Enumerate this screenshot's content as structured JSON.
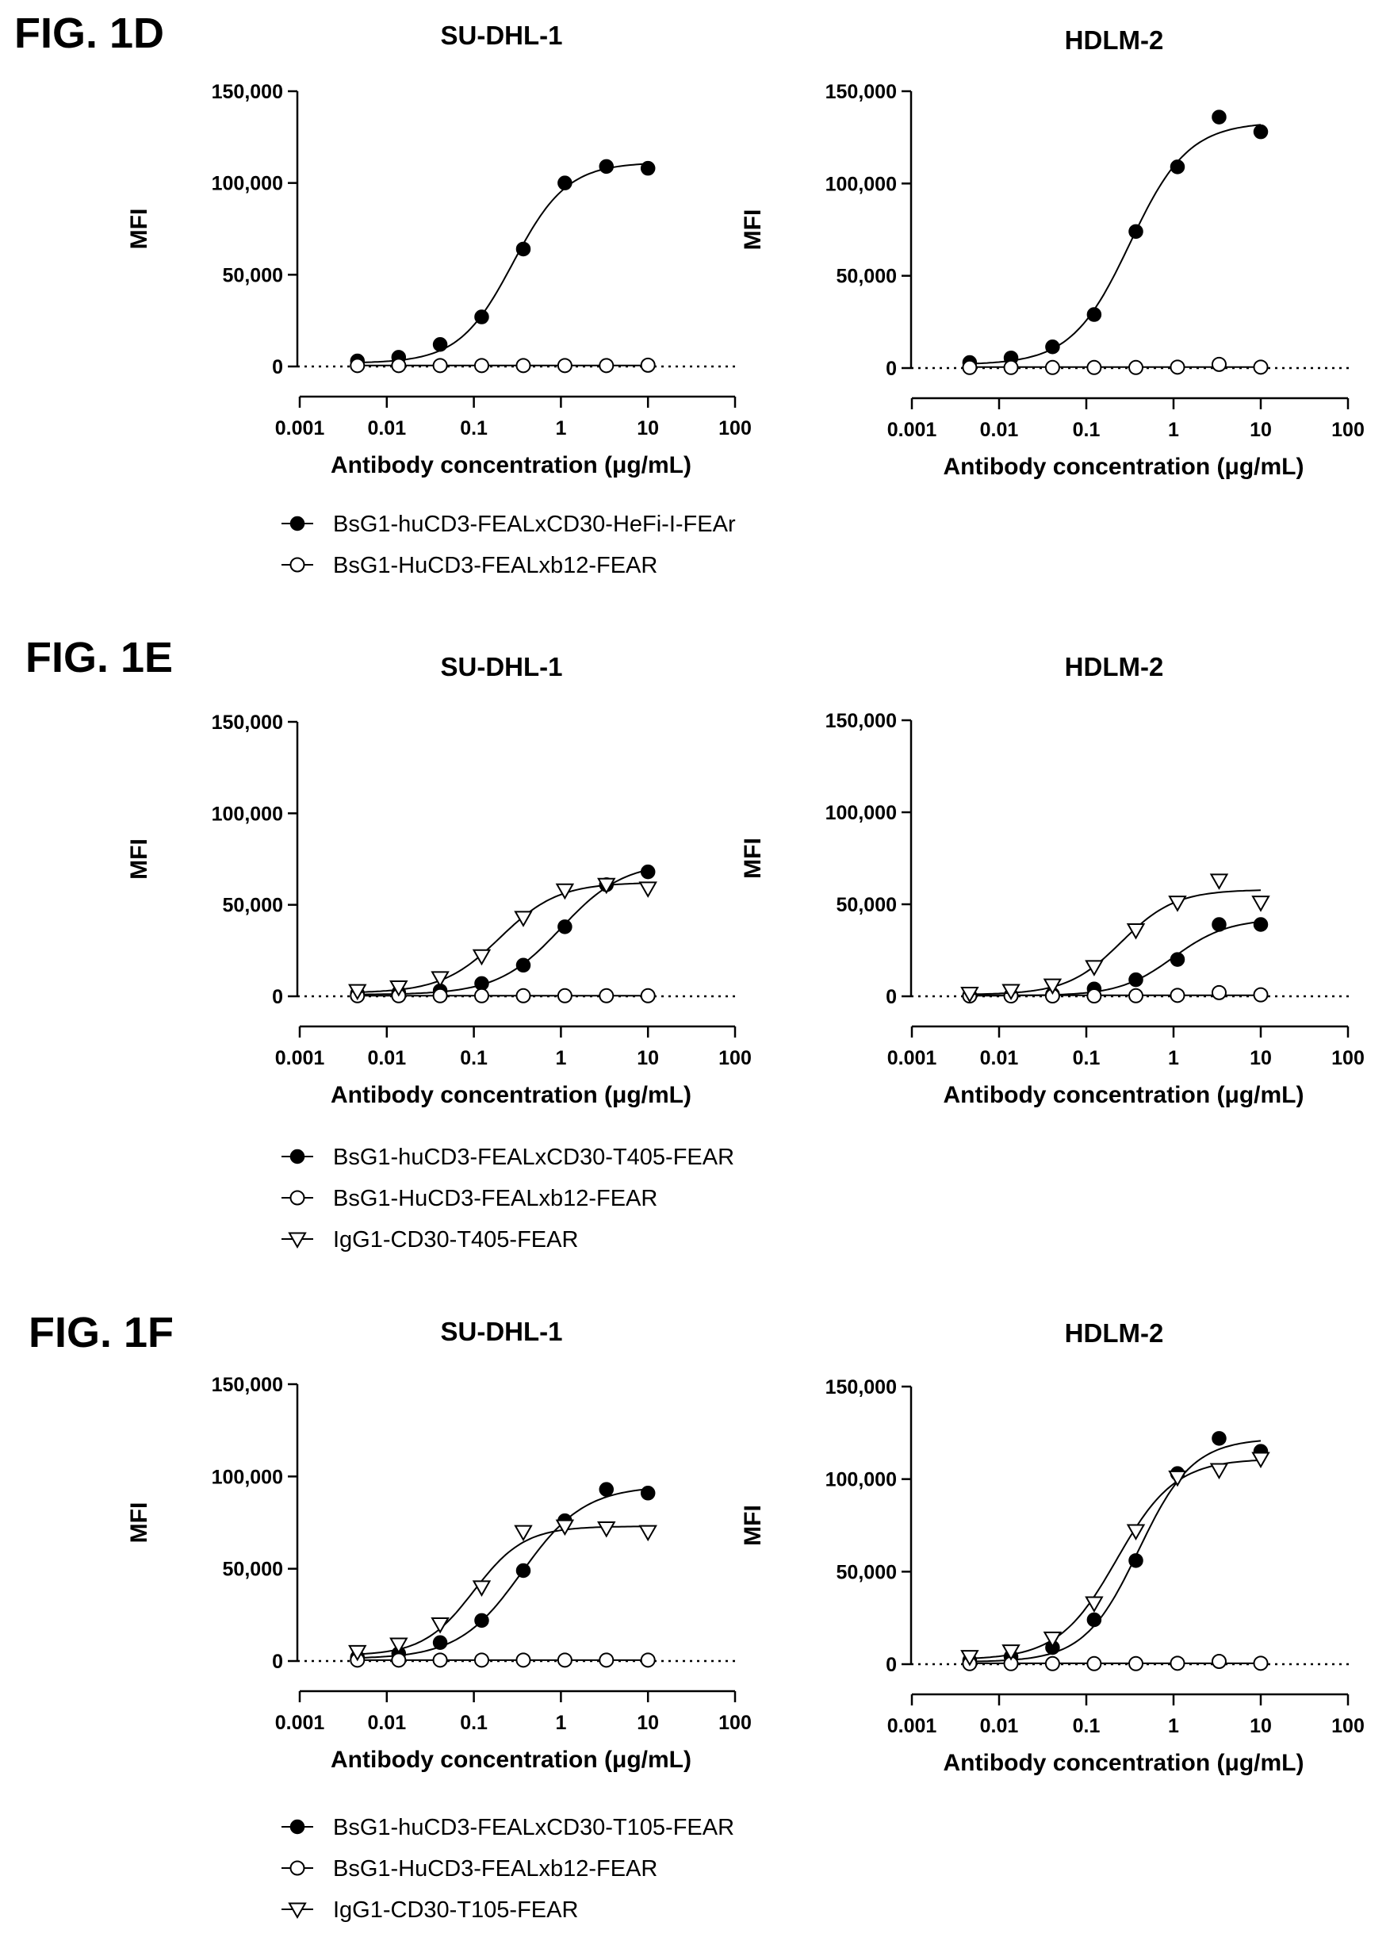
{
  "figures": [
    {
      "label": "FIG. 1D",
      "legend": [
        {
          "marker": "filled-circle",
          "label": "BsG1-huCD3-FEALxCD30-HeFi-I-FEAr"
        },
        {
          "marker": "open-circle",
          "label": "BsG1-HuCD3-FEALxb12-FEAR"
        }
      ]
    },
    {
      "label": "FIG. 1E",
      "legend": [
        {
          "marker": "filled-circle",
          "label": "BsG1-huCD3-FEALxCD30-T405-FEAR"
        },
        {
          "marker": "open-circle",
          "label": "BsG1-HuCD3-FEALxb12-FEAR"
        },
        {
          "marker": "open-triangle",
          "label": "IgG1-CD30-T405-FEAR"
        }
      ]
    },
    {
      "label": "FIG. 1F",
      "legend": [
        {
          "marker": "filled-circle",
          "label": "BsG1-huCD3-FEALxCD30-T105-FEAR"
        },
        {
          "marker": "open-circle",
          "label": "BsG1-HuCD3-FEALxb12-FEAR"
        },
        {
          "marker": "open-triangle",
          "label": "IgG1-CD30-T105-FEAR"
        }
      ]
    }
  ],
  "chart_data": [
    {
      "type": "scatter",
      "figure": "FIG. 1D",
      "title": "SU-DHL-1",
      "xlabel": "Antibody concentration (μg/mL)",
      "ylabel": "MFI",
      "xscale": "log",
      "xlim": [
        0.001,
        100
      ],
      "ylim": [
        0,
        150000
      ],
      "xticks": [
        "0.001",
        "0.01",
        "0.1",
        "1",
        "10",
        "100"
      ],
      "yticks": [
        "0",
        "50,000",
        "100,000",
        "150,000"
      ],
      "grid": false,
      "baseline": "dotted line at 0",
      "series": [
        {
          "marker": "filled-circle",
          "x": [
            0.0046,
            0.0137,
            0.041,
            0.123,
            0.37,
            1.11,
            3.33,
            10
          ],
          "y": [
            3000,
            5000,
            12000,
            27000,
            64000,
            100000,
            109000,
            108000
          ],
          "fit": "sigmoid"
        },
        {
          "marker": "open-circle",
          "x": [
            0.0046,
            0.0137,
            0.041,
            0.123,
            0.37,
            1.11,
            3.33,
            10
          ],
          "y": [
            500,
            500,
            500,
            500,
            500,
            500,
            500,
            700
          ],
          "fit": "flat"
        }
      ]
    },
    {
      "type": "scatter",
      "figure": "FIG. 1D",
      "title": "HDLM-2",
      "xlabel": "Antibody concentration (μg/mL)",
      "ylabel": "MFI",
      "xscale": "log",
      "xlim": [
        0.001,
        100
      ],
      "ylim": [
        0,
        150000
      ],
      "xticks": [
        "0.001",
        "0.01",
        "0.1",
        "1",
        "10",
        "100"
      ],
      "yticks": [
        "0",
        "50,000",
        "100,000",
        "150,000"
      ],
      "grid": false,
      "baseline": "dotted line at 0",
      "series": [
        {
          "marker": "filled-circle",
          "x": [
            0.0046,
            0.0137,
            0.041,
            0.123,
            0.37,
            1.11,
            3.33,
            10
          ],
          "y": [
            3000,
            5500,
            11500,
            29000,
            74000,
            109000,
            136000,
            128000
          ],
          "fit": "sigmoid"
        },
        {
          "marker": "open-circle",
          "x": [
            0.0046,
            0.0137,
            0.041,
            0.123,
            0.37,
            1.11,
            3.33,
            10
          ],
          "y": [
            300,
            300,
            300,
            300,
            300,
            500,
            2000,
            500
          ],
          "fit": "flat"
        }
      ]
    },
    {
      "type": "scatter",
      "figure": "FIG. 1E",
      "title": "SU-DHL-1",
      "xlabel": "Antibody concentration (μg/mL)",
      "ylabel": "MFI",
      "xscale": "log",
      "xlim": [
        0.001,
        100
      ],
      "ylim": [
        0,
        150000
      ],
      "xticks": [
        "0.001",
        "0.01",
        "0.1",
        "1",
        "10",
        "100"
      ],
      "yticks": [
        "0",
        "50,000",
        "100,000",
        "150,000"
      ],
      "grid": false,
      "baseline": "dotted line at 0",
      "series": [
        {
          "marker": "filled-circle",
          "x": [
            0.0046,
            0.0137,
            0.041,
            0.123,
            0.37,
            1.11,
            3.33,
            10
          ],
          "y": [
            1500,
            2000,
            3000,
            7000,
            17000,
            38000,
            61000,
            68000
          ],
          "fit": "sigmoid"
        },
        {
          "marker": "open-circle",
          "x": [
            0.0046,
            0.0137,
            0.041,
            0.123,
            0.37,
            1.11,
            3.33,
            10
          ],
          "y": [
            300,
            300,
            300,
            300,
            300,
            300,
            300,
            300
          ],
          "fit": "flat"
        },
        {
          "marker": "open-triangle",
          "x": [
            0.0046,
            0.0137,
            0.041,
            0.123,
            0.37,
            1.11,
            3.33,
            10
          ],
          "y": [
            3000,
            5000,
            10000,
            22000,
            43000,
            58000,
            61000,
            59000
          ],
          "fit": "sigmoid"
        }
      ]
    },
    {
      "type": "scatter",
      "figure": "FIG. 1E",
      "title": "HDLM-2",
      "xlabel": "Antibody concentration (μg/mL)",
      "ylabel": "MFI",
      "xscale": "log",
      "xlim": [
        0.001,
        100
      ],
      "ylim": [
        0,
        150000
      ],
      "xticks": [
        "0.001",
        "0.01",
        "0.1",
        "1",
        "10",
        "100"
      ],
      "yticks": [
        "0",
        "50,000",
        "100,000",
        "150,000"
      ],
      "grid": false,
      "baseline": "dotted line at 0",
      "series": [
        {
          "marker": "filled-circle",
          "x": [
            0.0046,
            0.0137,
            0.041,
            0.123,
            0.37,
            1.11,
            3.33,
            10
          ],
          "y": [
            500,
            500,
            1000,
            4000,
            9000,
            20000,
            39000,
            39000
          ],
          "fit": "sigmoid"
        },
        {
          "marker": "open-circle",
          "x": [
            0.0046,
            0.0137,
            0.041,
            0.123,
            0.37,
            1.11,
            3.33,
            10
          ],
          "y": [
            200,
            200,
            200,
            200,
            300,
            500,
            2000,
            800
          ],
          "fit": "flat"
        },
        {
          "marker": "open-triangle",
          "x": [
            0.0046,
            0.0137,
            0.041,
            0.123,
            0.37,
            1.11,
            3.33,
            10
          ],
          "y": [
            1500,
            3000,
            6000,
            16000,
            36000,
            51000,
            63000,
            51000
          ],
          "fit": "sigmoid"
        }
      ]
    },
    {
      "type": "scatter",
      "figure": "FIG. 1F",
      "title": "SU-DHL-1",
      "xlabel": "Antibody concentration (μg/mL)",
      "ylabel": "MFI",
      "xscale": "log",
      "xlim": [
        0.001,
        100
      ],
      "ylim": [
        0,
        150000
      ],
      "xticks": [
        "0.001",
        "0.01",
        "0.1",
        "1",
        "10",
        "100"
      ],
      "yticks": [
        "0",
        "50,000",
        "100,000",
        "150,000"
      ],
      "grid": false,
      "baseline": "dotted line at 0",
      "series": [
        {
          "marker": "filled-circle",
          "x": [
            0.0046,
            0.0137,
            0.041,
            0.123,
            0.37,
            1.11,
            3.33,
            10
          ],
          "y": [
            2000,
            4000,
            10000,
            22000,
            49000,
            76000,
            93000,
            91000
          ],
          "fit": "sigmoid"
        },
        {
          "marker": "open-circle",
          "x": [
            0.0046,
            0.0137,
            0.041,
            0.123,
            0.37,
            1.11,
            3.33,
            10
          ],
          "y": [
            500,
            500,
            500,
            500,
            500,
            500,
            500,
            500
          ],
          "fit": "flat"
        },
        {
          "marker": "open-triangle",
          "x": [
            0.0046,
            0.0137,
            0.041,
            0.123,
            0.37,
            1.11,
            3.33,
            10
          ],
          "y": [
            5000,
            9000,
            20000,
            40000,
            70000,
            73000,
            72000,
            70000
          ],
          "fit": "sigmoid"
        }
      ]
    },
    {
      "type": "scatter",
      "figure": "FIG. 1F",
      "title": "HDLM-2",
      "xlabel": "Antibody concentration (μg/mL)",
      "ylabel": "MFI",
      "xscale": "log",
      "xlim": [
        0.001,
        100
      ],
      "ylim": [
        0,
        150000
      ],
      "xticks": [
        "0.001",
        "0.01",
        "0.1",
        "1",
        "10",
        "100"
      ],
      "yticks": [
        "0",
        "50,000",
        "100,000",
        "150,000"
      ],
      "grid": false,
      "baseline": "dotted line at 0",
      "series": [
        {
          "marker": "filled-circle",
          "x": [
            0.0046,
            0.0137,
            0.041,
            0.123,
            0.37,
            1.11,
            3.33,
            10
          ],
          "y": [
            2000,
            4000,
            9000,
            24000,
            56000,
            103000,
            122000,
            115000
          ],
          "fit": "sigmoid"
        },
        {
          "marker": "open-circle",
          "x": [
            0.0046,
            0.0137,
            0.041,
            0.123,
            0.37,
            1.11,
            3.33,
            10
          ],
          "y": [
            300,
            300,
            300,
            300,
            300,
            500,
            1500,
            500
          ],
          "fit": "flat"
        },
        {
          "marker": "open-triangle",
          "x": [
            0.0046,
            0.0137,
            0.041,
            0.123,
            0.37,
            1.11,
            3.33,
            10
          ],
          "y": [
            4000,
            7000,
            14000,
            33000,
            72000,
            101000,
            105000,
            111000
          ],
          "fit": "sigmoid"
        }
      ]
    }
  ]
}
